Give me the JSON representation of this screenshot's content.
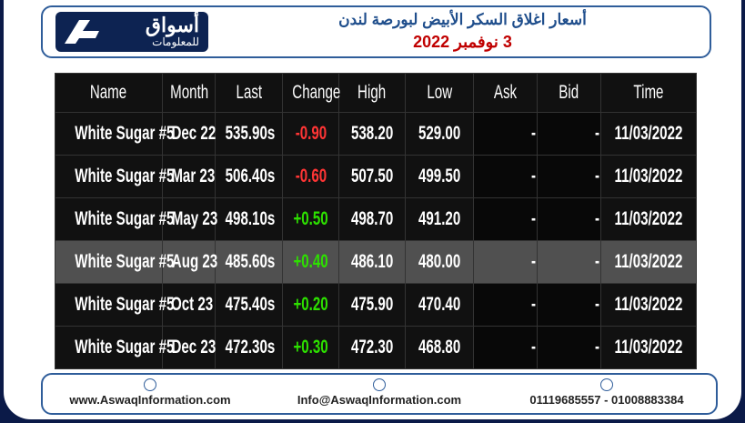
{
  "header": {
    "logo": {
      "name": "أسواق",
      "tagline": "للمعلومات"
    },
    "title": "أسعار اغلاق السكر الأبيض لبورصة لندن",
    "date": "3 نوفمبر 2022"
  },
  "table": {
    "columns": [
      "Name",
      "Month",
      "Last",
      "Change",
      "High",
      "Low",
      "Ask",
      "Bid",
      "Time"
    ],
    "rows": [
      [
        "White Sugar #5",
        "Dec 22",
        "535.90s",
        "-0.90",
        "538.20",
        "529.00",
        "-",
        "-",
        "11/03/2022"
      ],
      [
        "White Sugar #5",
        "Mar 23",
        "506.40s",
        "-0.60",
        "507.50",
        "499.50",
        "-",
        "-",
        "11/03/2022"
      ],
      [
        "White Sugar #5",
        "May 23",
        "498.10s",
        "+0.50",
        "498.70",
        "491.20",
        "-",
        "-",
        "11/03/2022"
      ],
      [
        "White Sugar #5",
        "Aug 23",
        "485.60s",
        "+0.40",
        "486.10",
        "480.00",
        "-",
        "-",
        "11/03/2022"
      ],
      [
        "White Sugar #5",
        "Oct 23",
        "475.40s",
        "+0.20",
        "475.90",
        "470.40",
        "-",
        "-",
        "11/03/2022"
      ],
      [
        "White Sugar #5",
        "Dec 23",
        "472.30s",
        "+0.30",
        "472.30",
        "468.80",
        "-",
        "-",
        "11/03/2022"
      ]
    ]
  },
  "footer": {
    "website": "www.AswaqInformation.com",
    "email": "Info@AswaqInformation.com",
    "phone": "01119685557 - 01008883384"
  }
}
